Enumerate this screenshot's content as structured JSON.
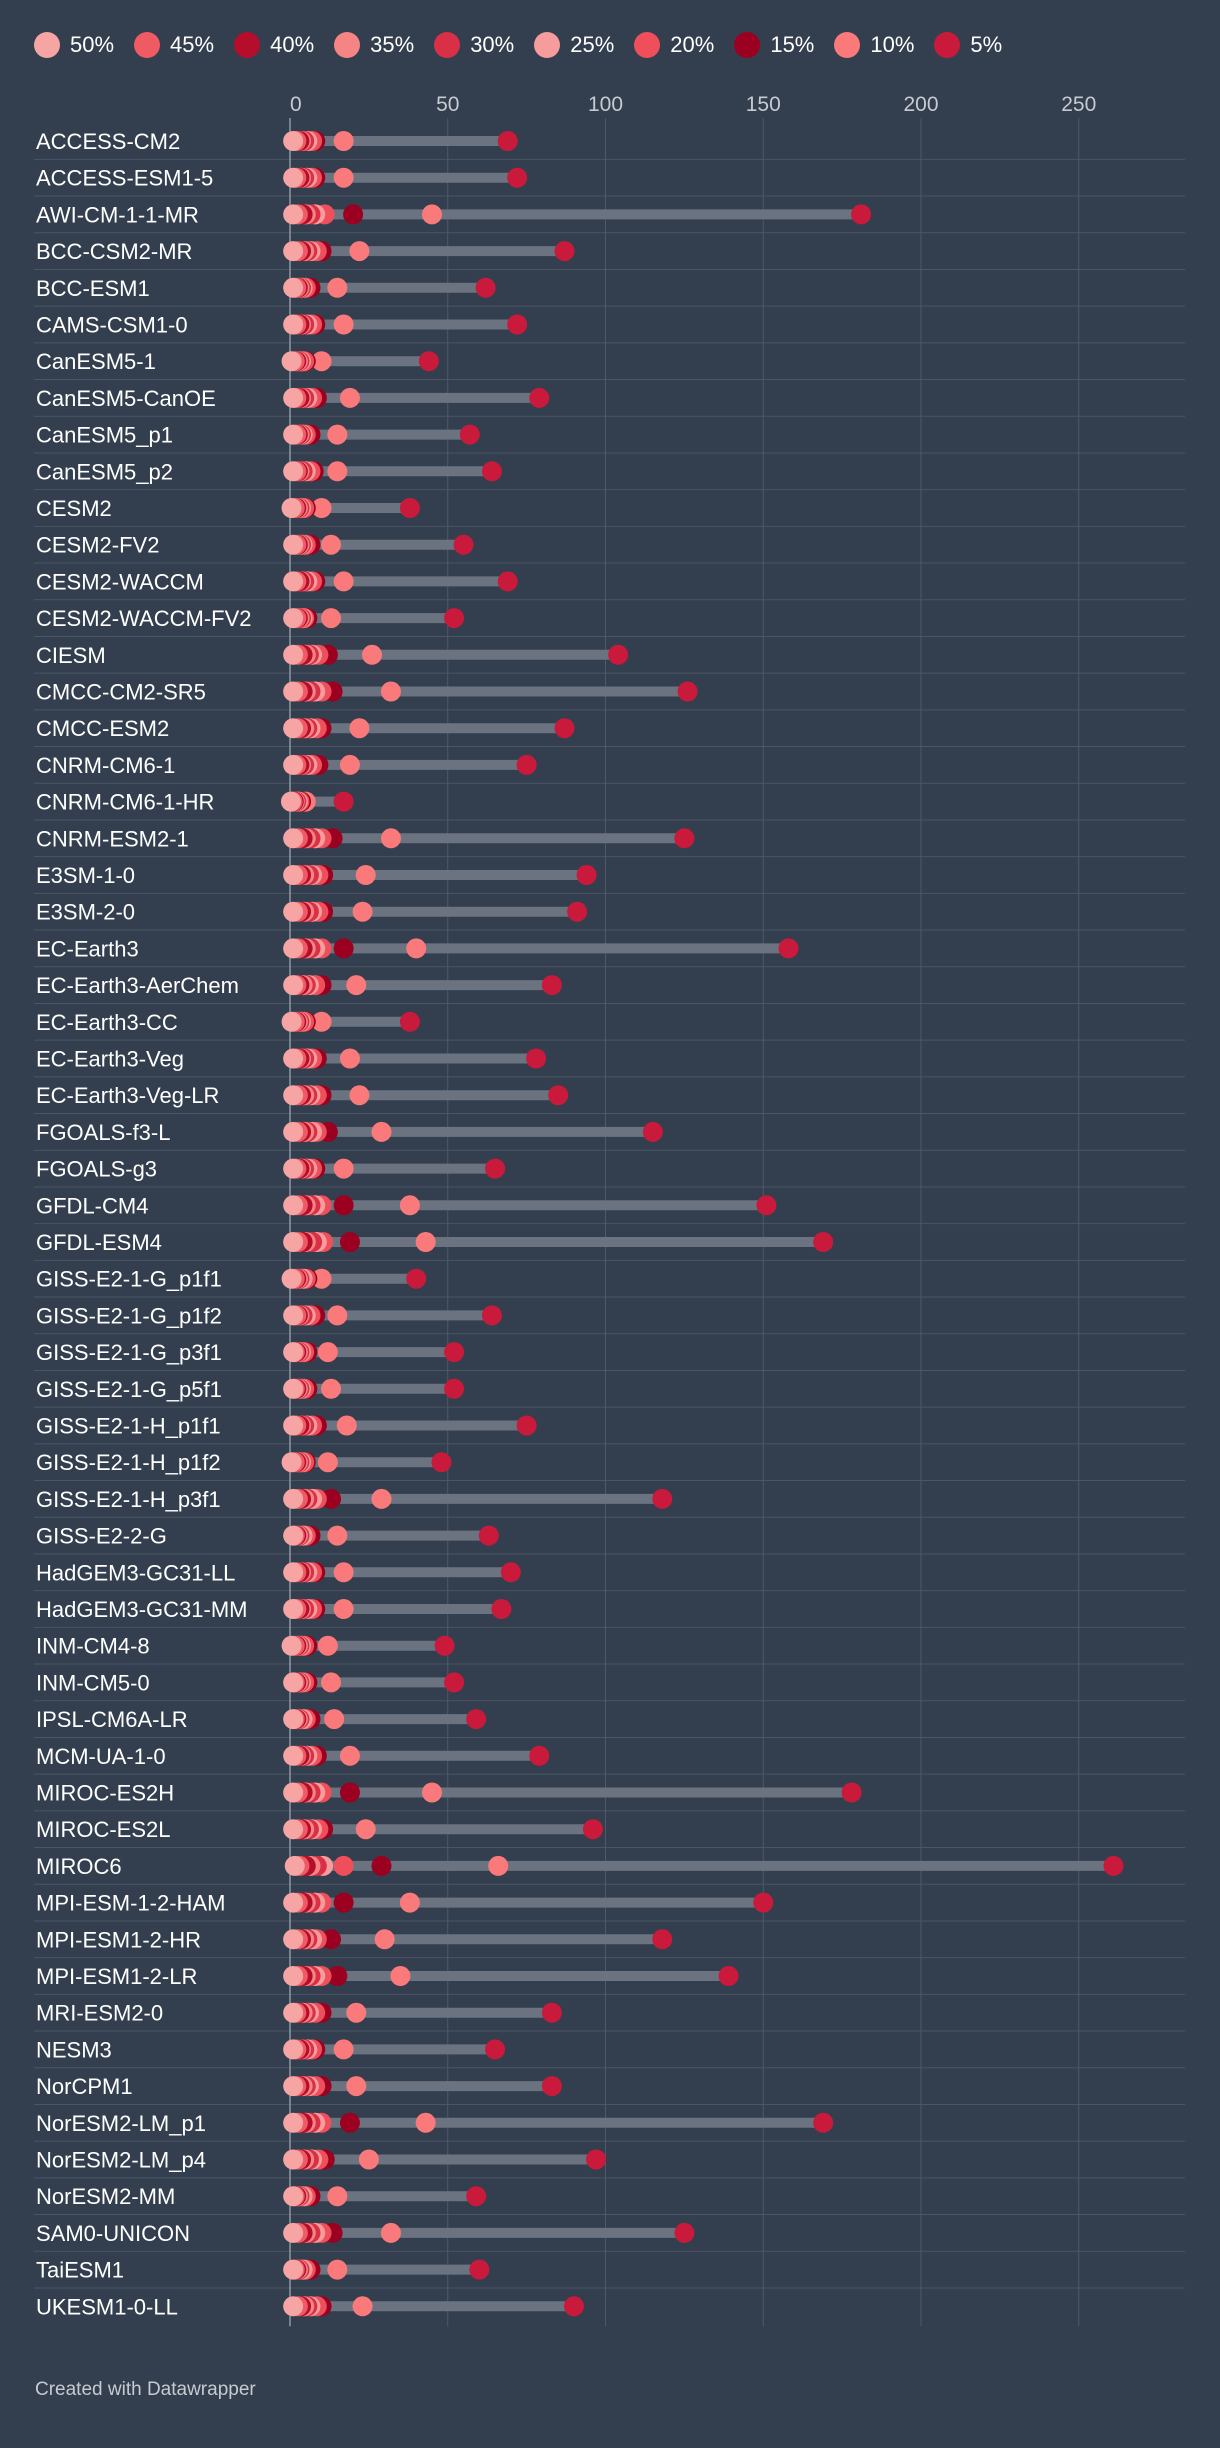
{
  "chart_data": {
    "type": "dot-range",
    "title": "",
    "xlabel": "",
    "ylabel": "",
    "xlim": [
      0,
      285
    ],
    "xticks": [
      0,
      50,
      100,
      150,
      200,
      250
    ],
    "grid": true,
    "legend_position": "top",
    "series": [
      {
        "name": "50%",
        "color": "#f7a4a4"
      },
      {
        "name": "45%",
        "color": "#f05a63"
      },
      {
        "name": "40%",
        "color": "#b50e2d"
      },
      {
        "name": "35%",
        "color": "#f58584"
      },
      {
        "name": "30%",
        "color": "#d93047"
      },
      {
        "name": "25%",
        "color": "#f79c9c"
      },
      {
        "name": "20%",
        "color": "#ee4f5b"
      },
      {
        "name": "15%",
        "color": "#9c0020"
      },
      {
        "name": "10%",
        "color": "#fa7a7b"
      },
      {
        "name": "5%",
        "color": "#c91a3c"
      }
    ],
    "rows": [
      {
        "model": "ACCESS-CM2",
        "values": [
          1,
          2,
          3,
          3.5,
          4.5,
          5.5,
          7,
          8,
          17,
          69
        ]
      },
      {
        "model": "ACCESS-ESM1-5",
        "values": [
          1,
          2,
          3,
          3.5,
          4.5,
          5.5,
          7,
          8,
          17,
          72
        ]
      },
      {
        "model": "AWI-CM-1-1-MR",
        "values": [
          1,
          2.5,
          4,
          5,
          6.5,
          8,
          11,
          20,
          45,
          181
        ]
      },
      {
        "model": "BCC-CSM2-MR",
        "values": [
          1,
          2.5,
          3.5,
          4.5,
          5.5,
          6.5,
          8.5,
          10,
          22,
          87
        ]
      },
      {
        "model": "BCC-ESM1",
        "values": [
          1,
          2,
          2.5,
          3,
          3.5,
          4,
          5,
          6.5,
          15,
          62
        ]
      },
      {
        "model": "CAMS-CSM1-0",
        "values": [
          1,
          2,
          3,
          3.5,
          4.5,
          5.5,
          7,
          8,
          17,
          72
        ]
      },
      {
        "model": "CanESM5-1",
        "values": [
          0.5,
          1.5,
          2,
          2.5,
          3,
          3.5,
          4.5,
          5,
          10,
          44
        ]
      },
      {
        "model": "CanESM5-CanOE",
        "values": [
          1,
          2,
          3,
          3.5,
          4.5,
          5.5,
          7,
          8.5,
          19,
          79
        ]
      },
      {
        "model": "CanESM5_p1",
        "values": [
          1,
          2,
          2.5,
          3,
          3.5,
          4,
          5,
          6.5,
          15,
          57
        ]
      },
      {
        "model": "CanESM5_p2",
        "values": [
          1,
          2,
          2.5,
          3,
          4,
          5,
          6.5,
          7.5,
          15,
          64
        ]
      },
      {
        "model": "CESM2",
        "values": [
          0.5,
          1.5,
          2,
          2.5,
          3,
          3.5,
          4.5,
          5,
          10,
          38
        ]
      },
      {
        "model": "CESM2-FV2",
        "values": [
          1,
          2,
          2.5,
          3,
          3.5,
          4,
          5,
          6.5,
          13,
          55
        ]
      },
      {
        "model": "CESM2-WACCM",
        "values": [
          1,
          2,
          3,
          3.5,
          4.5,
          5.5,
          7,
          8,
          17,
          69
        ]
      },
      {
        "model": "CESM2-WACCM-FV2",
        "values": [
          1,
          2,
          2.5,
          3,
          3.5,
          4,
          4.5,
          5.5,
          13,
          52
        ]
      },
      {
        "model": "CIESM",
        "values": [
          1,
          2.5,
          4,
          5,
          6,
          7,
          9,
          12,
          26,
          104
        ]
      },
      {
        "model": "CMCC-CM2-SR5",
        "values": [
          1,
          2.5,
          4,
          5,
          6.5,
          8,
          10,
          13.5,
          32,
          126
        ]
      },
      {
        "model": "CMCC-ESM2",
        "values": [
          1,
          2.5,
          3.5,
          4.5,
          5.5,
          6.5,
          8.5,
          10,
          22,
          87
        ]
      },
      {
        "model": "CNRM-CM6-1",
        "values": [
          1,
          2,
          3,
          3.5,
          4.5,
          5.5,
          7,
          9,
          19,
          75
        ]
      },
      {
        "model": "CNRM-CM6-1-HR",
        "values": [
          0.3,
          0.8,
          1.2,
          1.5,
          2,
          2.5,
          3,
          3.5,
          5,
          17
        ]
      },
      {
        "model": "CNRM-ESM2-1",
        "values": [
          1,
          2.5,
          4,
          5,
          6.5,
          8,
          10,
          13.5,
          32,
          125
        ]
      },
      {
        "model": "E3SM-1-0",
        "values": [
          1,
          2.5,
          3.5,
          4.5,
          6,
          7,
          9,
          10.5,
          24,
          94
        ]
      },
      {
        "model": "E3SM-2-0",
        "values": [
          1,
          2.5,
          3.5,
          4.5,
          6,
          7,
          9,
          10.5,
          23,
          91
        ]
      },
      {
        "model": "EC-Earth3",
        "values": [
          1,
          2.5,
          4,
          5,
          6.5,
          8,
          10,
          17,
          40,
          158
        ]
      },
      {
        "model": "EC-Earth3-AerChem",
        "values": [
          1,
          2,
          3,
          4,
          5,
          6,
          8,
          10,
          21,
          83
        ]
      },
      {
        "model": "EC-Earth3-CC",
        "values": [
          0.5,
          1.5,
          2,
          2.5,
          3,
          3.5,
          4.5,
          5,
          10,
          38
        ]
      },
      {
        "model": "EC-Earth3-Veg",
        "values": [
          1,
          2,
          3,
          3.5,
          4.5,
          5.5,
          7,
          8.5,
          19,
          78
        ]
      },
      {
        "model": "EC-Earth3-Veg-LR",
        "values": [
          1,
          2.5,
          3.5,
          4.5,
          5.5,
          6.5,
          8.5,
          10,
          22,
          85
        ]
      },
      {
        "model": "FGOALS-f3-L",
        "values": [
          1,
          2.5,
          3.5,
          4.5,
          5.5,
          7,
          8.5,
          12,
          29,
          115
        ]
      },
      {
        "model": "FGOALS-g3",
        "values": [
          1,
          2,
          3,
          3.5,
          4.5,
          5.5,
          7,
          8,
          17,
          65
        ]
      },
      {
        "model": "GFDL-CM4",
        "values": [
          1,
          2.5,
          4,
          5,
          6.5,
          8,
          10,
          17,
          38,
          151
        ]
      },
      {
        "model": "GFDL-ESM4",
        "values": [
          1,
          2.5,
          4,
          5,
          7,
          8.5,
          10.5,
          19,
          43,
          169
        ]
      },
      {
        "model": "GISS-E2-1-G_p1f1",
        "values": [
          0.5,
          1.5,
          2,
          2.5,
          3,
          4,
          5,
          5.5,
          10,
          40
        ]
      },
      {
        "model": "GISS-E2-1-G_p1f2",
        "values": [
          1,
          2,
          2.5,
          3,
          4,
          5,
          6.5,
          8,
          15,
          64
        ]
      },
      {
        "model": "GISS-E2-1-G_p3f1",
        "values": [
          1,
          1.5,
          2,
          2.5,
          3,
          3.5,
          4.5,
          5.5,
          12,
          52
        ]
      },
      {
        "model": "GISS-E2-1-G_p5f1",
        "values": [
          1,
          1.5,
          2,
          2.5,
          3,
          3.5,
          4.5,
          5.5,
          13,
          52
        ]
      },
      {
        "model": "GISS-E2-1-H_p1f1",
        "values": [
          1,
          2,
          3,
          3.5,
          4.5,
          5.5,
          7,
          8.5,
          18,
          75
        ]
      },
      {
        "model": "GISS-E2-1-H_p1f2",
        "values": [
          0.5,
          1.5,
          2,
          2.5,
          3,
          3.5,
          4.5,
          5,
          12,
          48
        ]
      },
      {
        "model": "GISS-E2-1-H_p3f1",
        "values": [
          1,
          2.5,
          3.5,
          4.5,
          5.5,
          7,
          8.5,
          13,
          29,
          118
        ]
      },
      {
        "model": "GISS-E2-2-G",
        "values": [
          1,
          1.5,
          2,
          2.5,
          3,
          4,
          5,
          6.5,
          15,
          63
        ]
      },
      {
        "model": "HadGEM3-GC31-LL",
        "values": [
          1,
          2,
          3,
          3.5,
          4.5,
          5.5,
          7,
          8,
          17,
          70
        ]
      },
      {
        "model": "HadGEM3-GC31-MM",
        "values": [
          1,
          2,
          3,
          3.5,
          4.5,
          5.5,
          7,
          8,
          17,
          67
        ]
      },
      {
        "model": "INM-CM4-8",
        "values": [
          0.5,
          1.5,
          2,
          2.5,
          3,
          3.5,
          4.5,
          5.5,
          12,
          49
        ]
      },
      {
        "model": "INM-CM5-0",
        "values": [
          1,
          1.5,
          2,
          2.5,
          3,
          3.5,
          4.5,
          5.5,
          13,
          52
        ]
      },
      {
        "model": "IPSL-CM6A-LR",
        "values": [
          1,
          1.5,
          2,
          2.5,
          3,
          4,
          5,
          6.5,
          14,
          59
        ]
      },
      {
        "model": "MCM-UA-1-0",
        "values": [
          1,
          2,
          3,
          3.5,
          4.5,
          5.5,
          7,
          8.5,
          19,
          79
        ]
      },
      {
        "model": "MIROC-ES2H",
        "values": [
          1,
          2.5,
          4,
          5,
          6.5,
          8,
          10,
          19,
          45,
          178
        ]
      },
      {
        "model": "MIROC-ES2L",
        "values": [
          1,
          2.5,
          3.5,
          4.5,
          6,
          7,
          9,
          10.5,
          24,
          96
        ]
      },
      {
        "model": "MIROC6",
        "values": [
          1.5,
          3,
          5,
          6.5,
          8.5,
          10.5,
          17,
          29,
          66,
          261
        ]
      },
      {
        "model": "MPI-ESM-1-2-HAM",
        "values": [
          1,
          2.5,
          4,
          5,
          6.5,
          8,
          10,
          17,
          38,
          150
        ]
      },
      {
        "model": "MPI-ESM1-2-HR",
        "values": [
          1,
          2.5,
          3.5,
          4.5,
          5.5,
          7,
          8.5,
          13,
          30,
          118
        ]
      },
      {
        "model": "MPI-ESM1-2-LR",
        "values": [
          1,
          2.5,
          4,
          5,
          6.5,
          8,
          10,
          15,
          35,
          139
        ]
      },
      {
        "model": "MRI-ESM2-0",
        "values": [
          1,
          2,
          3,
          4,
          5,
          6,
          8,
          10,
          21,
          83
        ]
      },
      {
        "model": "NESM3",
        "values": [
          1,
          2,
          3,
          3.5,
          4.5,
          5.5,
          7,
          8,
          17,
          65
        ]
      },
      {
        "model": "NorCPM1",
        "values": [
          1,
          2,
          3,
          4,
          5,
          6,
          8,
          10,
          21,
          83
        ]
      },
      {
        "model": "NorESM2-LM_p1",
        "values": [
          1,
          2.5,
          4,
          5,
          6.5,
          8,
          10,
          19,
          43,
          169
        ]
      },
      {
        "model": "NorESM2-LM_p4",
        "values": [
          1,
          2.5,
          3.5,
          4.5,
          6,
          7,
          9,
          11,
          25,
          97
        ]
      },
      {
        "model": "NorESM2-MM",
        "values": [
          1,
          1.5,
          2,
          2.5,
          3,
          4,
          5,
          6.5,
          15,
          59
        ]
      },
      {
        "model": "SAM0-UNICON",
        "values": [
          1,
          2.5,
          4,
          5,
          6.5,
          8,
          10,
          13.5,
          32,
          125
        ]
      },
      {
        "model": "TaiESM1",
        "values": [
          1,
          1.5,
          2,
          2.5,
          3,
          4,
          5,
          6.5,
          15,
          60
        ]
      },
      {
        "model": "UKESM1-0-LL",
        "values": [
          1,
          2.5,
          3.5,
          4.5,
          5.5,
          6.5,
          8.5,
          10,
          23,
          90
        ]
      }
    ]
  },
  "footer": {
    "credit": "Created with Datawrapper"
  }
}
